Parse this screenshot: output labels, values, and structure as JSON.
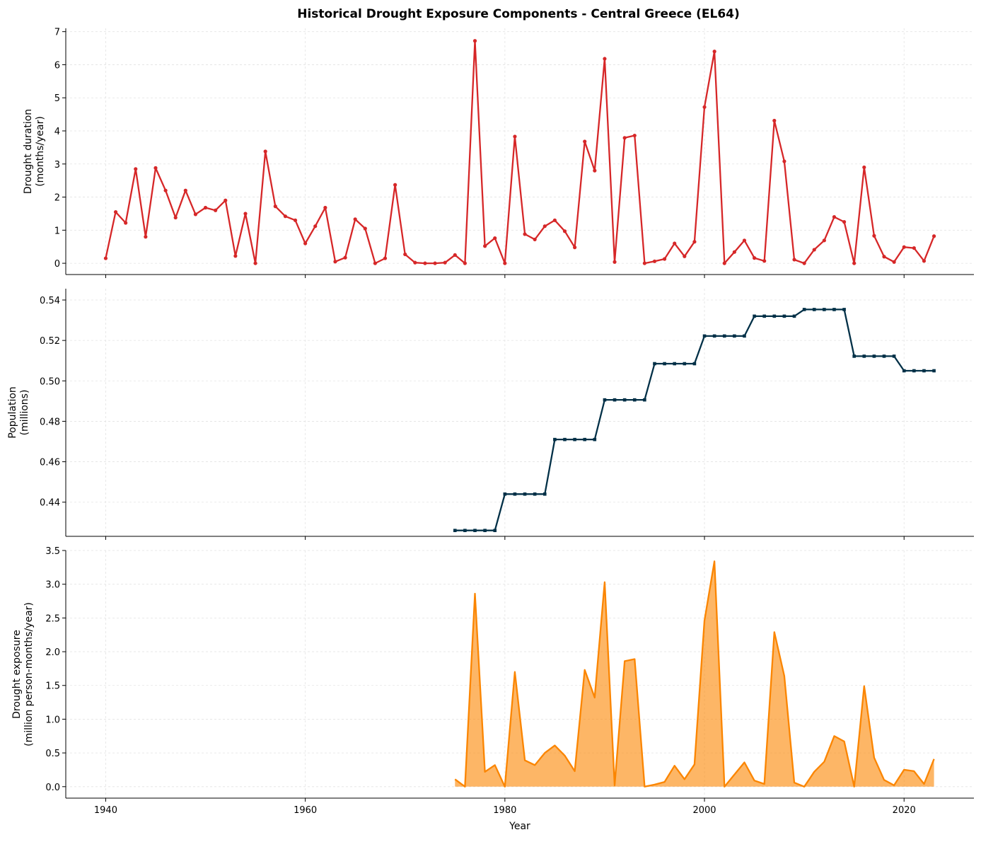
{
  "chart_data": [
    {
      "type": "line",
      "title": "Historical Drought Exposure Components - Central Greece (EL64)",
      "ylabel": "Drought duration\n(months/year)",
      "xlabel": "",
      "color": "#d62728",
      "marker": "circle",
      "grid": true,
      "xlim": [
        1936,
        2027
      ],
      "ylim": [
        -0.34,
        7.1
      ],
      "xticks": [
        1940,
        1960,
        1980,
        2000,
        2020
      ],
      "yticks": [
        0,
        1,
        2,
        3,
        4,
        5,
        6,
        7
      ],
      "x_start": 1940,
      "values": [
        0.15,
        1.55,
        1.22,
        2.85,
        0.8,
        2.88,
        2.2,
        1.38,
        2.2,
        1.48,
        1.68,
        1.6,
        1.9,
        0.22,
        1.5,
        0,
        3.38,
        1.72,
        1.42,
        1.3,
        0.6,
        1.12,
        1.68,
        0.05,
        0.17,
        1.33,
        1.05,
        0,
        0.15,
        2.37,
        0.27,
        0.02,
        0,
        0,
        0.02,
        0.25,
        0,
        6.72,
        0.52,
        0.76,
        0,
        3.83,
        0.88,
        0.72,
        1.12,
        1.3,
        0.97,
        0.48,
        3.68,
        2.8,
        6.18,
        0.04,
        3.79,
        3.86,
        0,
        0.06,
        0.13,
        0.6,
        0.21,
        0.65,
        4.72,
        6.4,
        0,
        0.34,
        0.69,
        0.16,
        0.07,
        4.31,
        3.08,
        0.11,
        0,
        0.41,
        0.69,
        1.4,
        1.25,
        0,
        2.9,
        0.83,
        0.2,
        0.04,
        0.49,
        0.46,
        0.07,
        0.82
      ]
    },
    {
      "type": "line",
      "ylabel": "Population\n(millions)",
      "xlabel": "",
      "color": "#023047",
      "marker": "square",
      "grid": true,
      "xlim": [
        1936,
        2027
      ],
      "ylim": [
        0.4231,
        0.5456
      ],
      "xticks": [
        1940,
        1960,
        1980,
        2000,
        2020
      ],
      "yticks": [
        0.44,
        0.46,
        0.48,
        0.5,
        0.52,
        0.54
      ],
      "x_start": 1975,
      "values": [
        0.426,
        0.426,
        0.426,
        0.426,
        0.426,
        0.444,
        0.444,
        0.444,
        0.444,
        0.444,
        0.471,
        0.471,
        0.471,
        0.471,
        0.471,
        0.4906,
        0.4906,
        0.4906,
        0.4906,
        0.4906,
        0.5085,
        0.5085,
        0.5085,
        0.5085,
        0.5085,
        0.5222,
        0.5222,
        0.5222,
        0.5222,
        0.5222,
        0.532,
        0.532,
        0.532,
        0.532,
        0.532,
        0.5353,
        0.5353,
        0.5353,
        0.5353,
        0.5353,
        0.5122,
        0.5122,
        0.5122,
        0.5122,
        0.5122,
        0.505,
        0.505,
        0.505,
        0.505
      ]
    },
    {
      "type": "area",
      "ylabel": "Drought exposure\n(million person-months/year)",
      "xlabel": "Year",
      "color": "#fb8500",
      "grid": true,
      "xlim": [
        1936,
        2027
      ],
      "ylim": [
        -0.17,
        3.5
      ],
      "xticks": [
        1940,
        1960,
        1980,
        2000,
        2020
      ],
      "yticks": [
        0.0,
        0.5,
        1.0,
        1.5,
        2.0,
        2.5,
        3.0,
        3.5
      ],
      "x_start": 1975,
      "values": [
        0.11,
        0,
        2.86,
        0.22,
        0.32,
        0,
        1.7,
        0.39,
        0.32,
        0.5,
        0.61,
        0.46,
        0.23,
        1.73,
        1.32,
        3.03,
        0.02,
        1.86,
        1.89,
        0,
        0.03,
        0.07,
        0.31,
        0.11,
        0.33,
        2.46,
        3.34,
        0,
        0.18,
        0.36,
        0.09,
        0.04,
        2.29,
        1.64,
        0.06,
        0,
        0.22,
        0.37,
        0.75,
        0.67,
        0,
        1.49,
        0.43,
        0.1,
        0.02,
        0.25,
        0.23,
        0.04,
        0.41
      ]
    }
  ]
}
